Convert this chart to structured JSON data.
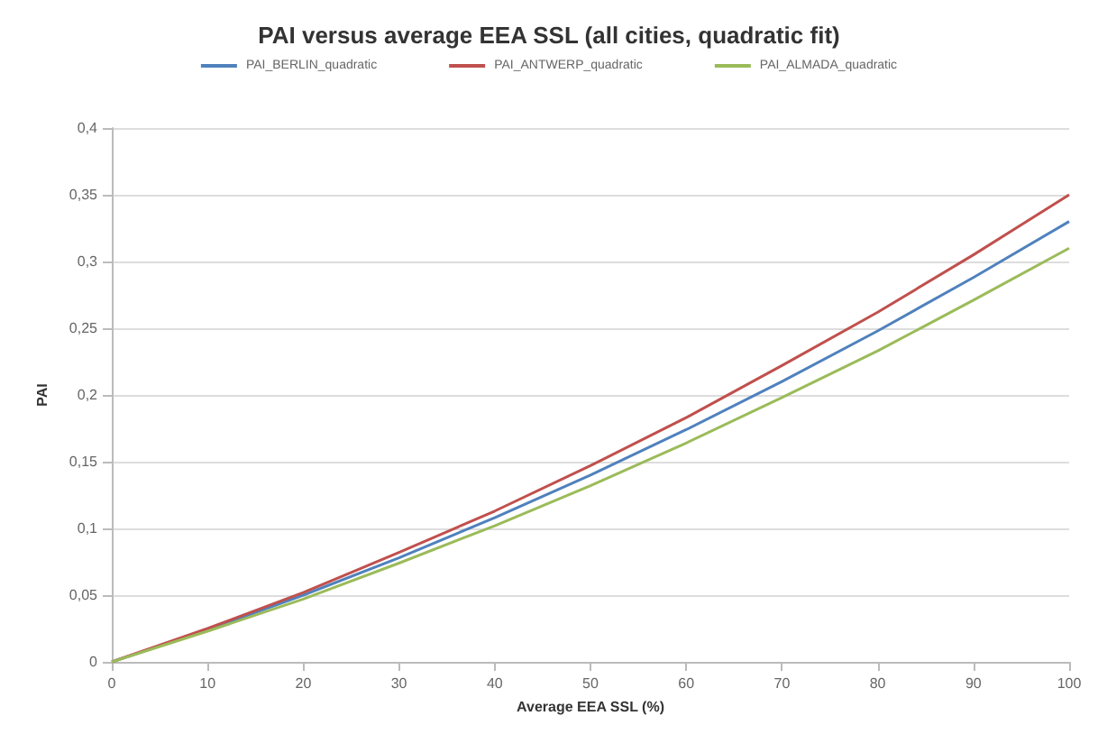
{
  "chart_data": {
    "type": "line",
    "title": "PAI versus average EEA SSL (all cities, quadratic fit)",
    "xlabel": "Average EEA SSL (%)",
    "ylabel": "PAI",
    "x": [
      0,
      10,
      20,
      30,
      40,
      50,
      60,
      70,
      80,
      90,
      100
    ],
    "series": [
      {
        "name": "PAI_BERLIN_quadratic",
        "color": "#4f81bd",
        "values": [
          0,
          0.024,
          0.05,
          0.078,
          0.108,
          0.14,
          0.174,
          0.21,
          0.248,
          0.288,
          0.33
        ]
      },
      {
        "name": "PAI_ANTWERP_quadratic",
        "color": "#c0504d",
        "values": [
          0,
          0.025,
          0.052,
          0.082,
          0.113,
          0.147,
          0.183,
          0.222,
          0.262,
          0.305,
          0.35
        ]
      },
      {
        "name": "PAI_ALMADA_quadratic",
        "color": "#9bbb59",
        "values": [
          0,
          0.023,
          0.047,
          0.074,
          0.102,
          0.132,
          0.164,
          0.198,
          0.233,
          0.271,
          0.31
        ]
      }
    ],
    "xlim": [
      0,
      100
    ],
    "xticks": [
      0,
      10,
      20,
      30,
      40,
      50,
      60,
      70,
      80,
      90,
      100
    ],
    "ylim": [
      0,
      0.4
    ],
    "yticks": [
      {
        "value": 0,
        "label": "0"
      },
      {
        "value": 0.05,
        "label": "0,05"
      },
      {
        "value": 0.1,
        "label": "0,1"
      },
      {
        "value": 0.15,
        "label": "0,15"
      },
      {
        "value": 0.2,
        "label": "0,2"
      },
      {
        "value": 0.25,
        "label": "0,25"
      },
      {
        "value": 0.3,
        "label": "0,3"
      },
      {
        "value": 0.35,
        "label": "0,35"
      },
      {
        "value": 0.4,
        "label": "0,4"
      }
    ],
    "grid": "y",
    "legend": "top",
    "marker": "none",
    "line_style": "solid"
  }
}
